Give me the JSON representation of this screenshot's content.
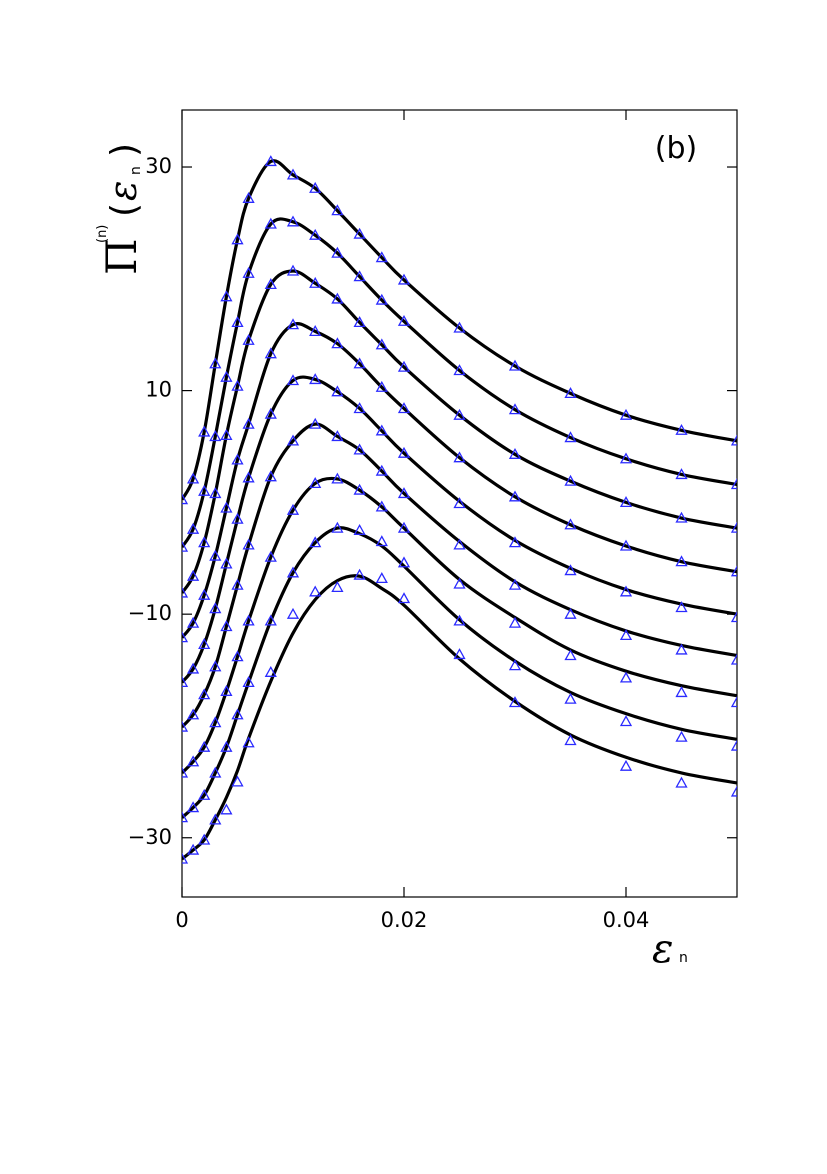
{
  "chart_data": {
    "type": "line",
    "annotation": "(b)",
    "ylabel": {
      "symbol": "Π",
      "superscript": "(n)",
      "open": "(",
      "argument": "ε",
      "subscript": "n",
      "close": ")"
    },
    "xlabel": {
      "symbol": "ε",
      "subscript": "n"
    },
    "xlim": [
      0,
      0.05
    ],
    "ylim": [
      -35.3,
      35.1
    ],
    "xticks": [
      0,
      0.02,
      0.04
    ],
    "yticks": [
      {
        "value": -30,
        "label": "−30"
      },
      {
        "value": -10,
        "label": "−10"
      },
      10,
      30
    ],
    "x": [
      0,
      0.001,
      0.002,
      0.003,
      0.004,
      0.005,
      0.006,
      0.008,
      0.01,
      0.012,
      0.014,
      0.016,
      0.018,
      0.02,
      0.025,
      0.03,
      0.035,
      0.04,
      0.045,
      0.05
    ],
    "series": [
      {
        "mode": "line",
        "color": "#000000",
        "values": [
          0.25,
          2.1,
          6.3,
          12.4,
          18.4,
          23.5,
          27.2,
          30.5,
          29.3,
          28.1,
          26.1,
          24.0,
          21.9,
          19.9,
          15.6,
          12.2,
          9.75,
          7.8,
          6.45,
          5.5
        ]
      },
      {
        "mode": "line",
        "color": "#000000",
        "values": [
          -4,
          -2.4,
          1.0,
          5.9,
          11.2,
          16.1,
          20.5,
          24.9,
          25.1,
          23.9,
          22.3,
          20.2,
          18.1,
          16.2,
          11.8,
          8.3,
          5.8,
          3.9,
          2.5,
          1.6
        ]
      },
      {
        "mode": "line",
        "color": "#000000",
        "values": [
          -8.1,
          -6.6,
          -3.6,
          0.8,
          6.0,
          10.4,
          14.5,
          19.5,
          20.7,
          19.6,
          18.2,
          16.1,
          14.1,
          12.1,
          7.8,
          4.3,
          1.9,
          0.0,
          -1.4,
          -2.3
        ]
      },
      {
        "mode": "line",
        "color": "#000000",
        "values": [
          -12.1,
          -10.8,
          -8.3,
          -4.8,
          -0.5,
          3.8,
          7.0,
          13.3,
          15.9,
          15.3,
          14.2,
          12.4,
          10.3,
          8.4,
          4.0,
          0.5,
          -2.0,
          -3.9,
          -5.3,
          -6.2
        ]
      },
      {
        "mode": "line",
        "color": "#000000",
        "values": [
          -16.1,
          -14.9,
          -12.7,
          -9.5,
          -5.5,
          -1.5,
          2.2,
          7.9,
          10.9,
          11.0,
          9.9,
          8.4,
          6.4,
          4.4,
          0.1,
          -3.4,
          -5.9,
          -7.8,
          -9.1,
          -10.0
        ]
      },
      {
        "mode": "line",
        "color": "#000000",
        "values": [
          -20.1,
          -19.0,
          -17.2,
          -14.7,
          -11.1,
          -7.4,
          -3.8,
          2.3,
          5.5,
          7.0,
          5.9,
          4.7,
          2.8,
          0.8,
          -3.5,
          -7.1,
          -9.6,
          -11.5,
          -12.8,
          -13.7
        ]
      },
      {
        "mode": "line",
        "color": "#000000",
        "values": [
          -24.2,
          -23.2,
          -21.9,
          -19.7,
          -16.9,
          -13.8,
          -10.6,
          -4.9,
          -0.7,
          1.7,
          2.1,
          1.1,
          -0.4,
          -2.3,
          -6.9,
          -10.3,
          -13.2,
          -15.1,
          -16.4,
          -17.3
        ]
      },
      {
        "mode": "line",
        "color": "#000000",
        "values": [
          -28.2,
          -27.3,
          -26.2,
          -24.2,
          -21.9,
          -19.0,
          -16.1,
          -10.6,
          -6.3,
          -3.6,
          -2.3,
          -2.8,
          -3.9,
          -5.7,
          -10.5,
          -14.2,
          -17.0,
          -18.9,
          -20.3,
          -21.2
        ]
      },
      {
        "mode": "line",
        "color": "#000000",
        "values": [
          -31.9,
          -31.1,
          -30.2,
          -28.4,
          -26.4,
          -24.0,
          -21.1,
          -16.0,
          -11.7,
          -8.7,
          -7.0,
          -6.6,
          -7.7,
          -9.2,
          -14.0,
          -17.8,
          -20.8,
          -22.8,
          -24.2,
          -25.1
        ]
      },
      {
        "mode": "markers",
        "color": "#2a2aff",
        "values": [
          0.25,
          2.1,
          6.3,
          12.4,
          18.4,
          23.5,
          27.2,
          30.5,
          29.3,
          28.1,
          26.1,
          24.0,
          21.9,
          19.9,
          15.6,
          12.2,
          9.75,
          7.8,
          6.45,
          5.5
        ]
      },
      {
        "mode": "markers",
        "color": "#2a2aff",
        "values": [
          -4,
          -2.4,
          1.0,
          5.9,
          11.2,
          16.1,
          20.5,
          24.9,
          25.1,
          23.9,
          22.3,
          20.2,
          18.1,
          16.2,
          11.8,
          8.3,
          5.8,
          3.9,
          2.5,
          1.6
        ]
      },
      {
        "mode": "markers",
        "color": "#2a2aff",
        "values": [
          -8.1,
          -6.6,
          -3.6,
          0.8,
          6.0,
          10.4,
          14.5,
          19.5,
          20.7,
          19.6,
          18.2,
          16.1,
          14.1,
          12.1,
          7.8,
          4.3,
          1.9,
          0.0,
          -1.4,
          -2.3
        ]
      },
      {
        "mode": "markers",
        "color": "#2a2aff",
        "values": [
          -12.1,
          -10.8,
          -8.3,
          -4.8,
          -0.5,
          3.8,
          7.0,
          13.3,
          15.9,
          15.3,
          14.2,
          12.4,
          10.3,
          8.4,
          4.0,
          0.5,
          -2.0,
          -3.9,
          -5.3,
          -6.2
        ]
      },
      {
        "mode": "markers",
        "color": "#2a2aff",
        "values": [
          -16.1,
          -14.9,
          -12.7,
          -9.5,
          -5.5,
          -1.5,
          2.2,
          7.9,
          10.9,
          11.0,
          9.9,
          8.4,
          6.4,
          4.4,
          -0.1,
          -3.6,
          -6.1,
          -8.0,
          -9.4,
          -10.3
        ]
      },
      {
        "mode": "markers",
        "color": "#2a2aff",
        "values": [
          -20.1,
          -19.0,
          -17.2,
          -14.7,
          -11.1,
          -7.4,
          -3.8,
          2.3,
          5.5,
          7.0,
          5.9,
          4.7,
          2.8,
          0.8,
          -3.8,
          -7.4,
          -10.0,
          -11.9,
          -13.2,
          -14.1
        ]
      },
      {
        "mode": "markers",
        "color": "#2a2aff",
        "values": [
          -24.2,
          -23.2,
          -21.9,
          -19.7,
          -16.9,
          -13.8,
          -10.6,
          -4.9,
          -0.7,
          1.7,
          2.1,
          1.1,
          -0.4,
          -2.3,
          -7.3,
          -10.8,
          -13.7,
          -15.7,
          -17.0,
          -17.9
        ]
      },
      {
        "mode": "markers",
        "color": "#2a2aff",
        "values": [
          -28.2,
          -27.3,
          -26.2,
          -24.2,
          -21.9,
          -19.0,
          -16.1,
          -10.6,
          -6.3,
          -3.6,
          -2.3,
          -2.5,
          -3.5,
          -5.4,
          -10.6,
          -14.6,
          -17.6,
          -19.6,
          -21.0,
          -21.8
        ]
      },
      {
        "mode": "markers",
        "color": "#2a2aff",
        "values": [
          -31.9,
          -31.1,
          -30.2,
          -28.4,
          -27.5,
          -25.0,
          -21.5,
          -15.2,
          -10.0,
          -8.0,
          -7.6,
          -6.5,
          -6.8,
          -8.6,
          -13.6,
          -17.9,
          -21.3,
          -23.6,
          -25.1,
          -25.9
        ]
      }
    ]
  }
}
